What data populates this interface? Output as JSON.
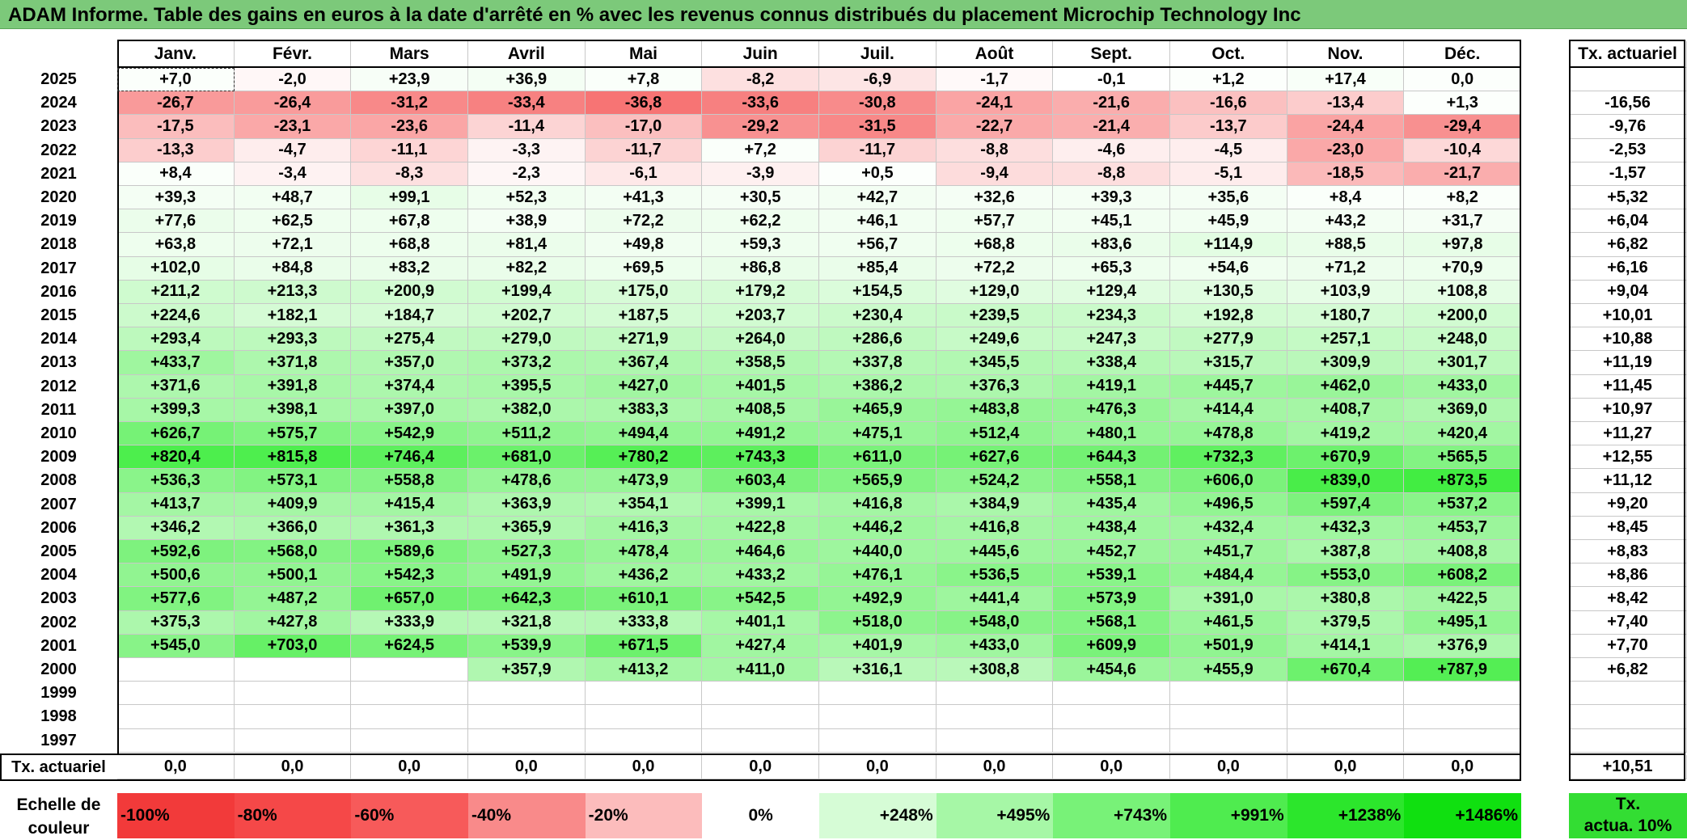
{
  "title": "ADAM Informe. Table des gains en euros à la date d'arrêté en % avec les revenus connus distribués du placement Microchip Technology Inc",
  "months": [
    "Janv.",
    "Févr.",
    "Mars",
    "Avril",
    "Mai",
    "Juin",
    "Juil.",
    "Août",
    "Sept.",
    "Oct.",
    "Nov.",
    "Déc."
  ],
  "tx_header": "Tx. actuariel",
  "rows": [
    {
      "year": "2025",
      "values": [
        "+7,0",
        "-2,0",
        "+23,9",
        "+36,9",
        "+7,8",
        "-8,2",
        "-6,9",
        "-1,7",
        "-0,1",
        "+1,2",
        "+17,4",
        "0,0"
      ],
      "tx": ""
    },
    {
      "year": "2024",
      "values": [
        "-26,7",
        "-26,4",
        "-31,2",
        "-33,4",
        "-36,8",
        "-33,6",
        "-30,8",
        "-24,1",
        "-21,6",
        "-16,6",
        "-13,4",
        "+1,3"
      ],
      "tx": "-16,56"
    },
    {
      "year": "2023",
      "values": [
        "-17,5",
        "-23,1",
        "-23,6",
        "-11,4",
        "-17,0",
        "-29,2",
        "-31,5",
        "-22,7",
        "-21,4",
        "-13,7",
        "-24,4",
        "-29,4"
      ],
      "tx": "-9,76"
    },
    {
      "year": "2022",
      "values": [
        "-13,3",
        "-4,7",
        "-11,1",
        "-3,3",
        "-11,7",
        "+7,2",
        "-11,7",
        "-8,8",
        "-4,6",
        "-4,5",
        "-23,0",
        "-10,4"
      ],
      "tx": "-2,53"
    },
    {
      "year": "2021",
      "values": [
        "+8,4",
        "-3,4",
        "-8,3",
        "-2,3",
        "-6,1",
        "-3,9",
        "+0,5",
        "-9,4",
        "-8,8",
        "-5,1",
        "-18,5",
        "-21,7"
      ],
      "tx": "-1,57"
    },
    {
      "year": "2020",
      "values": [
        "+39,3",
        "+48,7",
        "+99,1",
        "+52,3",
        "+41,3",
        "+30,5",
        "+42,7",
        "+32,6",
        "+39,3",
        "+35,6",
        "+8,4",
        "+8,2"
      ],
      "tx": "+5,32"
    },
    {
      "year": "2019",
      "values": [
        "+77,6",
        "+62,5",
        "+67,8",
        "+38,9",
        "+72,2",
        "+62,2",
        "+46,1",
        "+57,7",
        "+45,1",
        "+45,9",
        "+43,2",
        "+31,7"
      ],
      "tx": "+6,04"
    },
    {
      "year": "2018",
      "values": [
        "+63,8",
        "+72,1",
        "+68,8",
        "+81,4",
        "+49,8",
        "+59,3",
        "+56,7",
        "+68,8",
        "+83,6",
        "+114,9",
        "+88,5",
        "+97,8"
      ],
      "tx": "+6,82"
    },
    {
      "year": "2017",
      "values": [
        "+102,0",
        "+84,8",
        "+83,2",
        "+82,2",
        "+69,5",
        "+86,8",
        "+85,4",
        "+72,2",
        "+65,3",
        "+54,6",
        "+71,2",
        "+70,9"
      ],
      "tx": "+6,16"
    },
    {
      "year": "2016",
      "values": [
        "+211,2",
        "+213,3",
        "+200,9",
        "+199,4",
        "+175,0",
        "+179,2",
        "+154,5",
        "+129,0",
        "+129,4",
        "+130,5",
        "+103,9",
        "+108,8"
      ],
      "tx": "+9,04"
    },
    {
      "year": "2015",
      "values": [
        "+224,6",
        "+182,1",
        "+184,7",
        "+202,7",
        "+187,5",
        "+203,7",
        "+230,4",
        "+239,5",
        "+234,3",
        "+192,8",
        "+180,7",
        "+200,0"
      ],
      "tx": "+10,01"
    },
    {
      "year": "2014",
      "values": [
        "+293,4",
        "+293,3",
        "+275,4",
        "+279,0",
        "+271,9",
        "+264,0",
        "+286,6",
        "+249,6",
        "+247,3",
        "+277,9",
        "+257,1",
        "+248,0"
      ],
      "tx": "+10,88"
    },
    {
      "year": "2013",
      "values": [
        "+433,7",
        "+371,8",
        "+357,0",
        "+373,2",
        "+367,4",
        "+358,5",
        "+337,8",
        "+345,5",
        "+338,4",
        "+315,7",
        "+309,9",
        "+301,7"
      ],
      "tx": "+11,19"
    },
    {
      "year": "2012",
      "values": [
        "+371,6",
        "+391,8",
        "+374,4",
        "+395,5",
        "+427,0",
        "+401,5",
        "+386,2",
        "+376,3",
        "+419,1",
        "+445,7",
        "+462,0",
        "+433,0"
      ],
      "tx": "+11,45"
    },
    {
      "year": "2011",
      "values": [
        "+399,3",
        "+398,1",
        "+397,0",
        "+382,0",
        "+383,3",
        "+408,5",
        "+465,9",
        "+483,8",
        "+476,3",
        "+414,4",
        "+408,7",
        "+369,0"
      ],
      "tx": "+10,97"
    },
    {
      "year": "2010",
      "values": [
        "+626,7",
        "+575,7",
        "+542,9",
        "+511,2",
        "+494,4",
        "+491,2",
        "+475,1",
        "+512,4",
        "+480,1",
        "+478,8",
        "+419,2",
        "+420,4"
      ],
      "tx": "+11,27"
    },
    {
      "year": "2009",
      "values": [
        "+820,4",
        "+815,8",
        "+746,4",
        "+681,0",
        "+780,2",
        "+743,3",
        "+611,0",
        "+627,6",
        "+644,3",
        "+732,3",
        "+670,9",
        "+565,5"
      ],
      "tx": "+12,55"
    },
    {
      "year": "2008",
      "values": [
        "+536,3",
        "+573,1",
        "+558,8",
        "+478,6",
        "+473,9",
        "+603,4",
        "+565,9",
        "+524,2",
        "+558,1",
        "+606,0",
        "+839,0",
        "+873,5"
      ],
      "tx": "+11,12"
    },
    {
      "year": "2007",
      "values": [
        "+413,7",
        "+409,9",
        "+415,4",
        "+363,9",
        "+354,1",
        "+399,1",
        "+416,8",
        "+384,9",
        "+435,4",
        "+496,5",
        "+597,4",
        "+537,2"
      ],
      "tx": "+9,20"
    },
    {
      "year": "2006",
      "values": [
        "+346,2",
        "+366,0",
        "+361,3",
        "+365,9",
        "+416,3",
        "+422,8",
        "+446,2",
        "+416,8",
        "+438,4",
        "+432,4",
        "+432,3",
        "+453,7"
      ],
      "tx": "+8,45"
    },
    {
      "year": "2005",
      "values": [
        "+592,6",
        "+568,0",
        "+589,6",
        "+527,3",
        "+478,4",
        "+464,6",
        "+440,0",
        "+445,6",
        "+452,7",
        "+451,7",
        "+387,8",
        "+408,8"
      ],
      "tx": "+8,83"
    },
    {
      "year": "2004",
      "values": [
        "+500,6",
        "+500,1",
        "+542,3",
        "+491,9",
        "+436,2",
        "+433,2",
        "+476,1",
        "+536,5",
        "+539,1",
        "+484,4",
        "+553,0",
        "+608,2"
      ],
      "tx": "+8,86"
    },
    {
      "year": "2003",
      "values": [
        "+577,6",
        "+487,2",
        "+657,0",
        "+642,3",
        "+610,1",
        "+542,5",
        "+492,9",
        "+441,4",
        "+573,9",
        "+391,0",
        "+380,8",
        "+422,5"
      ],
      "tx": "+8,42"
    },
    {
      "year": "2002",
      "values": [
        "+375,3",
        "+427,8",
        "+333,9",
        "+321,8",
        "+333,8",
        "+401,1",
        "+518,0",
        "+548,0",
        "+568,1",
        "+461,5",
        "+379,5",
        "+495,1"
      ],
      "tx": "+7,40"
    },
    {
      "year": "2001",
      "values": [
        "+545,0",
        "+703,0",
        "+624,5",
        "+539,9",
        "+671,5",
        "+427,4",
        "+401,9",
        "+433,0",
        "+609,9",
        "+501,9",
        "+414,1",
        "+376,9"
      ],
      "tx": "+7,70"
    },
    {
      "year": "2000",
      "values": [
        "",
        "",
        "",
        "+357,9",
        "+413,2",
        "+411,0",
        "+316,1",
        "+308,8",
        "+454,6",
        "+455,9",
        "+670,4",
        "+787,9"
      ],
      "tx": "+6,82"
    },
    {
      "year": "1999",
      "values": [
        "",
        "",
        "",
        "",
        "",
        "",
        "",
        "",
        "",
        "",
        "",
        ""
      ],
      "tx": ""
    },
    {
      "year": "1998",
      "values": [
        "",
        "",
        "",
        "",
        "",
        "",
        "",
        "",
        "",
        "",
        "",
        ""
      ],
      "tx": ""
    },
    {
      "year": "1997",
      "values": [
        "",
        "",
        "",
        "",
        "",
        "",
        "",
        "",
        "",
        "",
        "",
        ""
      ],
      "tx": ""
    }
  ],
  "footer": {
    "label": "Tx. actuariel",
    "values": [
      "0,0",
      "0,0",
      "0,0",
      "0,0",
      "0,0",
      "0,0",
      "0,0",
      "0,0",
      "0,0",
      "0,0",
      "0,0",
      "0,0"
    ],
    "tx": "+10,51"
  },
  "legend": {
    "label_line1": "Echelle de",
    "label_line2": "couleur",
    "items": [
      {
        "text": "-100%",
        "color": "#f23a3a"
      },
      {
        "text": "-80%",
        "color": "#f54848"
      },
      {
        "text": "-60%",
        "color": "#f75a5a"
      },
      {
        "text": "-40%",
        "color": "#f98a8a"
      },
      {
        "text": "-20%",
        "color": "#fcbcbc"
      },
      {
        "text": "0%",
        "color": "#ffffff"
      },
      {
        "text": "+248%",
        "color": "#d6fcd6"
      },
      {
        "text": "+495%",
        "color": "#a6f7a6"
      },
      {
        "text": "+743%",
        "color": "#78f278"
      },
      {
        "text": "+991%",
        "color": "#4fec4f"
      },
      {
        "text": "+1238%",
        "color": "#2ce62c"
      },
      {
        "text": "+1486%",
        "color": "#10e010"
      }
    ],
    "tx_line1": "Tx.",
    "tx_line2": "actua. 10%",
    "tx_color": "#33dd33"
  }
}
